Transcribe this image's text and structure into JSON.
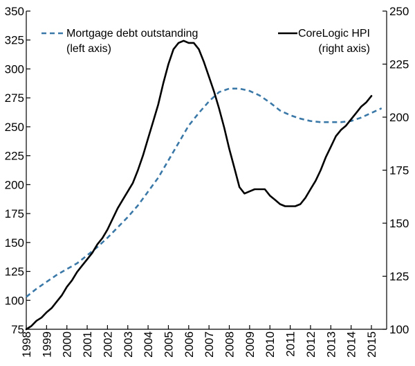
{
  "chart_data": {
    "type": "line",
    "x_tick_labels": [
      "1998",
      "1999",
      "2000",
      "2001",
      "2002",
      "2003",
      "2004",
      "2005",
      "2006",
      "2007",
      "2008",
      "2009",
      "2010",
      "2011",
      "2012",
      "2013",
      "2014",
      "2015"
    ],
    "left_axis": {
      "ticks": [
        75,
        100,
        125,
        150,
        175,
        200,
        225,
        250,
        275,
        300,
        325,
        350
      ],
      "ylim": [
        75,
        350
      ]
    },
    "right_axis": {
      "ticks": [
        100,
        125,
        150,
        175,
        200,
        225,
        250
      ],
      "ylim": [
        100,
        250
      ]
    },
    "legend": [
      {
        "line1": "Mortgage debt outstanding",
        "line2": "(left axis)"
      },
      {
        "line1": "CoreLogic HPI",
        "line2": "(right axis)"
      }
    ],
    "series": [
      {
        "name": "Mortgage debt outstanding",
        "axis": "left",
        "color": "#3a78a8",
        "style": "dashed",
        "points": [
          [
            1998.0,
            103
          ],
          [
            1998.5,
            110
          ],
          [
            1999.0,
            116
          ],
          [
            1999.5,
            122
          ],
          [
            2000.0,
            127
          ],
          [
            2000.5,
            132
          ],
          [
            2001.0,
            139
          ],
          [
            2001.5,
            146
          ],
          [
            2002.0,
            154
          ],
          [
            2002.5,
            163
          ],
          [
            2003.0,
            172
          ],
          [
            2003.5,
            182
          ],
          [
            2004.0,
            194
          ],
          [
            2004.5,
            206
          ],
          [
            2005.0,
            221
          ],
          [
            2005.5,
            236
          ],
          [
            2006.0,
            251
          ],
          [
            2006.5,
            262
          ],
          [
            2007.0,
            272
          ],
          [
            2007.5,
            280
          ],
          [
            2008.0,
            283
          ],
          [
            2008.5,
            283
          ],
          [
            2009.0,
            281
          ],
          [
            2009.5,
            277
          ],
          [
            2010.0,
            271
          ],
          [
            2010.5,
            264
          ],
          [
            2011.0,
            260
          ],
          [
            2011.5,
            257
          ],
          [
            2012.0,
            255
          ],
          [
            2012.5,
            254
          ],
          [
            2013.0,
            254
          ],
          [
            2013.5,
            254
          ],
          [
            2014.0,
            255
          ],
          [
            2014.5,
            258
          ],
          [
            2015.0,
            262
          ],
          [
            2015.5,
            266
          ]
        ]
      },
      {
        "name": "CoreLogic HPI",
        "axis": "right",
        "color": "#000000",
        "style": "solid",
        "points": [
          [
            1998.0,
            100
          ],
          [
            1998.25,
            101.5
          ],
          [
            1998.5,
            104
          ],
          [
            1998.75,
            105.5
          ],
          [
            1999.0,
            108
          ],
          [
            1999.25,
            110
          ],
          [
            1999.5,
            113
          ],
          [
            1999.75,
            116
          ],
          [
            2000.0,
            120
          ],
          [
            2000.25,
            123
          ],
          [
            2000.5,
            127
          ],
          [
            2000.75,
            130
          ],
          [
            2001.0,
            133
          ],
          [
            2001.25,
            136
          ],
          [
            2001.5,
            140
          ],
          [
            2001.75,
            143
          ],
          [
            2002.0,
            147
          ],
          [
            2002.25,
            152
          ],
          [
            2002.5,
            157
          ],
          [
            2002.75,
            161
          ],
          [
            2003.0,
            165
          ],
          [
            2003.25,
            169
          ],
          [
            2003.5,
            175
          ],
          [
            2003.75,
            182
          ],
          [
            2004.0,
            190
          ],
          [
            2004.25,
            198
          ],
          [
            2004.5,
            206
          ],
          [
            2004.75,
            216
          ],
          [
            2005.0,
            225
          ],
          [
            2005.25,
            232
          ],
          [
            2005.5,
            235
          ],
          [
            2005.75,
            236
          ],
          [
            2006.0,
            235
          ],
          [
            2006.25,
            235
          ],
          [
            2006.5,
            232
          ],
          [
            2006.75,
            226
          ],
          [
            2007.0,
            219
          ],
          [
            2007.25,
            212
          ],
          [
            2007.5,
            204
          ],
          [
            2007.75,
            195
          ],
          [
            2008.0,
            185
          ],
          [
            2008.25,
            176
          ],
          [
            2008.5,
            167
          ],
          [
            2008.75,
            164
          ],
          [
            2009.0,
            165
          ],
          [
            2009.25,
            166
          ],
          [
            2009.5,
            166
          ],
          [
            2009.75,
            166
          ],
          [
            2010.0,
            163
          ],
          [
            2010.25,
            161
          ],
          [
            2010.5,
            159
          ],
          [
            2010.75,
            158
          ],
          [
            2011.0,
            158
          ],
          [
            2011.25,
            158
          ],
          [
            2011.5,
            159
          ],
          [
            2011.75,
            162
          ],
          [
            2012.0,
            166
          ],
          [
            2012.25,
            170
          ],
          [
            2012.5,
            175
          ],
          [
            2012.75,
            181
          ],
          [
            2013.0,
            186
          ],
          [
            2013.25,
            191
          ],
          [
            2013.5,
            194
          ],
          [
            2013.75,
            196
          ],
          [
            2014.0,
            199
          ],
          [
            2014.25,
            202
          ],
          [
            2014.5,
            205
          ],
          [
            2014.75,
            207
          ],
          [
            2015.0,
            210
          ]
        ]
      }
    ],
    "grid": false,
    "legend_placement": "top"
  }
}
